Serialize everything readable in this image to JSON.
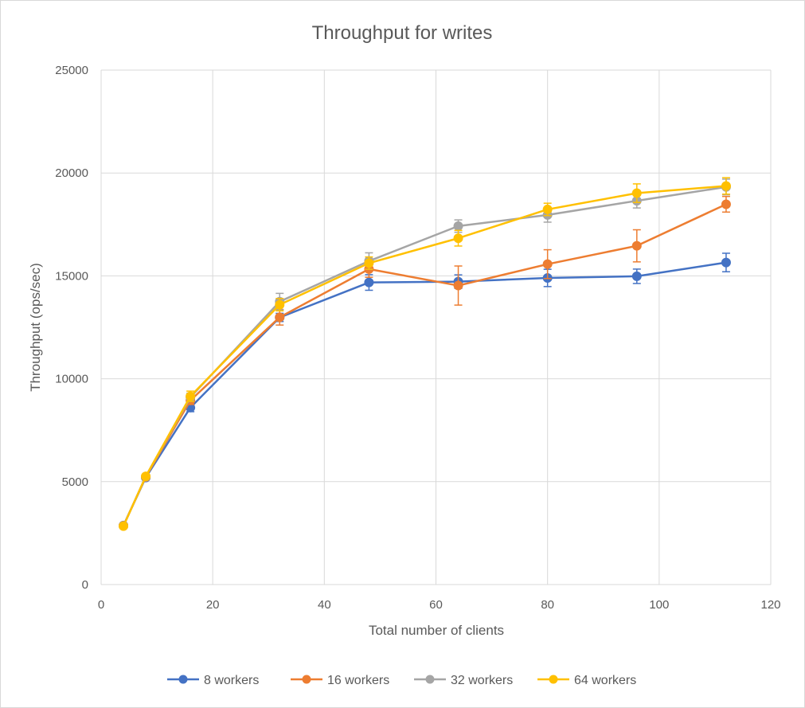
{
  "chart_data": {
    "type": "line",
    "title": "Throughput for writes",
    "xlabel": "Total number of clients",
    "ylabel": "Throughput (ops/sec)",
    "xlim": [
      0,
      120
    ],
    "ylim": [
      0,
      25000
    ],
    "xticks": [
      0,
      20,
      40,
      60,
      80,
      100,
      120
    ],
    "yticks": [
      0,
      5000,
      10000,
      15000,
      20000,
      25000
    ],
    "grid": true,
    "legend_position": "bottom",
    "x": [
      4,
      8,
      16,
      32,
      48,
      64,
      80,
      96,
      112
    ],
    "series": [
      {
        "name": "8 workers",
        "color": "#4472C4",
        "values": [
          2870,
          5200,
          8600,
          12980,
          14680,
          14720,
          14900,
          14980,
          15650
        ],
        "error": [
          0,
          0,
          200,
          200,
          380,
          330,
          420,
          350,
          450
        ]
      },
      {
        "name": "16 workers",
        "color": "#ED7D31",
        "values": [
          2860,
          5230,
          8950,
          12990,
          15330,
          14530,
          15570,
          16460,
          18480
        ],
        "error": [
          0,
          0,
          200,
          380,
          400,
          950,
          700,
          780,
          380
        ]
      },
      {
        "name": "32 workers",
        "color": "#A5A5A5",
        "values": [
          2850,
          5250,
          9100,
          13750,
          15720,
          17420,
          17960,
          18650,
          19320
        ],
        "error": [
          0,
          0,
          200,
          400,
          400,
          300,
          350,
          350,
          380
        ]
      },
      {
        "name": "64 workers",
        "color": "#FFC000",
        "values": [
          2840,
          5260,
          9150,
          13600,
          15620,
          16830,
          18230,
          19020,
          19370
        ],
        "error": [
          0,
          0,
          250,
          300,
          300,
          380,
          300,
          450,
          400
        ]
      }
    ]
  }
}
